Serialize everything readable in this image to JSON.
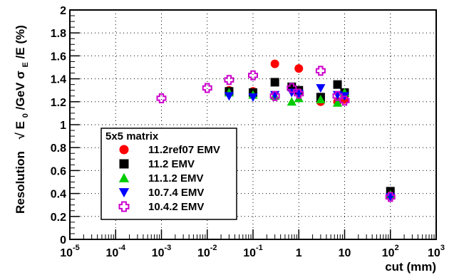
{
  "chart_data": {
    "type": "scatter",
    "xscale": "log",
    "xlim": [
      1e-05,
      1000
    ],
    "ylim": [
      0,
      2
    ],
    "grid": true,
    "x_ticks": [
      {
        "value": 1e-05,
        "base": "10",
        "exp": "-5"
      },
      {
        "value": 0.0001,
        "base": "10",
        "exp": "-4"
      },
      {
        "value": 0.001,
        "base": "10",
        "exp": "-3"
      },
      {
        "value": 0.01,
        "base": "10",
        "exp": "-2"
      },
      {
        "value": 0.1,
        "base": "10",
        "exp": "-1"
      },
      {
        "value": 1,
        "base": "1",
        "exp": ""
      },
      {
        "value": 10,
        "base": "10",
        "exp": ""
      },
      {
        "value": 100,
        "base": "10",
        "exp": "2"
      },
      {
        "value": 1000,
        "base": "10",
        "exp": "3"
      }
    ],
    "y_ticks": [
      "0",
      "0.2",
      "0.4",
      "0.6",
      "0.8",
      "1",
      "1.2",
      "1.4",
      "1.6",
      "1.8",
      "2"
    ],
    "xlabel": "cut (mm)",
    "ylabel_prefix": "Resolution",
    "ylabel_formula": {
      "sqrt": "√",
      "e": "E",
      "e_sub": "0",
      "gev": "/GeV",
      "sigma": "σ",
      "sigma_sub": "E",
      "tail": "/E (%)"
    },
    "legend_title": "5x5 matrix",
    "legend_position": "lower-left",
    "series": [
      {
        "name": "11.2ref07 EMV",
        "marker": "circle",
        "color": "#ff0000",
        "points": [
          [
            0.03,
            1.3
          ],
          [
            0.1,
            1.29
          ],
          [
            0.3,
            1.53
          ],
          [
            1,
            1.49
          ],
          [
            3,
            1.2
          ],
          [
            7,
            1.2
          ],
          [
            10,
            1.22
          ],
          [
            100,
            0.39
          ]
        ]
      },
      {
        "name": "11.2 EMV",
        "marker": "square",
        "color": "#000000",
        "points": [
          [
            0.03,
            1.29
          ],
          [
            0.1,
            1.28
          ],
          [
            0.3,
            1.37
          ],
          [
            0.7,
            1.33
          ],
          [
            1,
            1.3
          ],
          [
            3,
            1.24
          ],
          [
            7,
            1.35
          ],
          [
            10,
            1.28
          ],
          [
            100,
            0.42
          ]
        ]
      },
      {
        "name": "11.1.2 EMV",
        "marker": "triangle-up",
        "color": "#00cc00",
        "points": [
          [
            0.03,
            1.28
          ],
          [
            0.1,
            1.26
          ],
          [
            0.3,
            1.25
          ],
          [
            0.7,
            1.2
          ],
          [
            1,
            1.23
          ],
          [
            3,
            1.22
          ],
          [
            7,
            1.19
          ],
          [
            10,
            1.28
          ],
          [
            100,
            0.39
          ]
        ]
      },
      {
        "name": "10.7.4 EMV",
        "marker": "triangle-down",
        "color": "#0000ff",
        "points": [
          [
            0.03,
            1.25
          ],
          [
            0.1,
            1.24
          ],
          [
            0.3,
            1.26
          ],
          [
            0.7,
            1.28
          ],
          [
            1,
            1.27
          ],
          [
            3,
            1.32
          ],
          [
            7,
            1.26
          ],
          [
            10,
            1.25
          ],
          [
            100,
            0.37
          ]
        ]
      },
      {
        "name": "10.4.2 EMV",
        "marker": "open-cross",
        "color": "#cc00cc",
        "points": [
          [
            0.001,
            1.23
          ],
          [
            0.01,
            1.32
          ],
          [
            0.03,
            1.39
          ],
          [
            0.1,
            1.43
          ],
          [
            0.3,
            1.25
          ],
          [
            0.7,
            1.32
          ],
          [
            1,
            1.27
          ],
          [
            3,
            1.47
          ],
          [
            7,
            1.25
          ],
          [
            10,
            1.21
          ],
          [
            100,
            0.37
          ]
        ]
      }
    ]
  }
}
